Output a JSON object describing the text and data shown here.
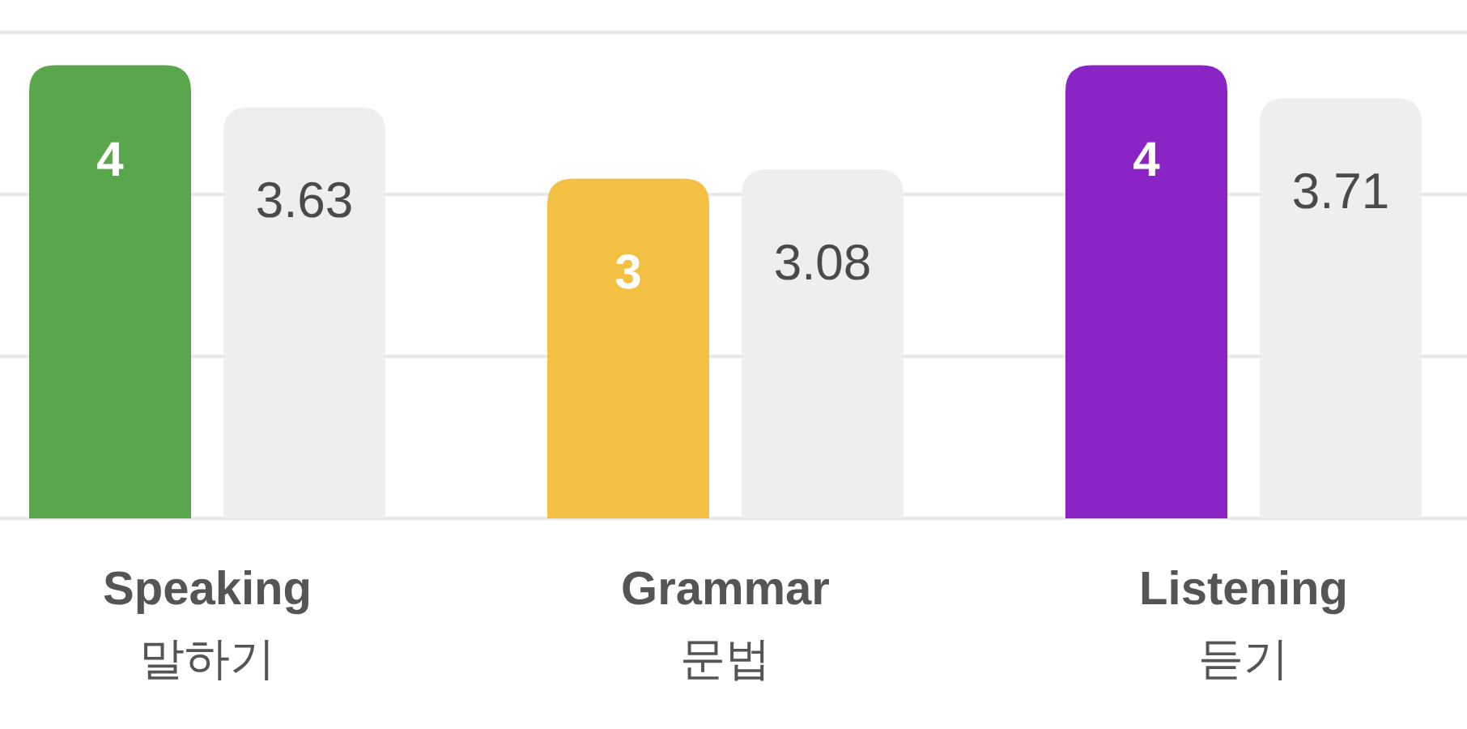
{
  "chart_data": {
    "type": "bar",
    "categories": [
      "Speaking\n말하기",
      "Grammar\n문법",
      "Listening\n듣기"
    ],
    "series": [
      {
        "colors": [
          "#5aa64d",
          "#f4c044",
          "#8b24c4"
        ],
        "values": [
          4,
          3,
          4
        ]
      },
      {
        "color": "#eeeeee",
        "values": [
          3.63,
          3.08,
          3.71
        ]
      }
    ],
    "ylim": [
      0,
      4.29
    ],
    "yticks": [
      {
        "value": 0,
        "label": null
      },
      {
        "value": 1.43,
        "label": null
      },
      {
        "value": 2.86,
        "label": null
      },
      {
        "value": 4.29,
        "label": null
      }
    ],
    "grid": "y",
    "data_labels": true
  }
}
